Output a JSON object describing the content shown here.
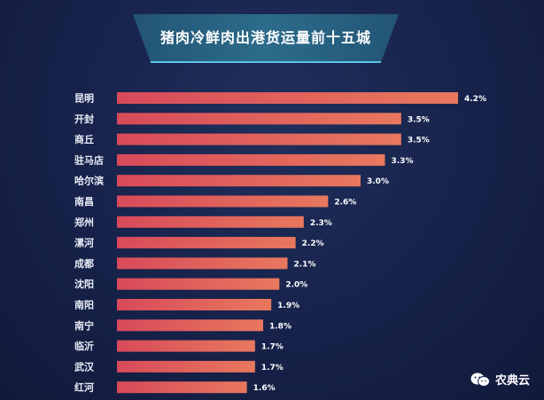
{
  "title": "猪肉冷鲜肉出港货运量前十五城",
  "watermark": {
    "text": "农典云",
    "icon": "wechat-icon"
  },
  "colors": {
    "bar_start": "#d84a5a",
    "bar_end": "#e8785e",
    "background": "#17224a",
    "title_panel": "#2d6f8c"
  },
  "chart_data": {
    "type": "bar",
    "orientation": "horizontal",
    "categories": [
      "昆明",
      "开封",
      "商丘",
      "驻马店",
      "哈尔滨",
      "南昌",
      "郑州",
      "漯河",
      "成都",
      "沈阳",
      "南阳",
      "南宁",
      "临沂",
      "武汉",
      "红河"
    ],
    "values": [
      4.2,
      3.5,
      3.5,
      3.3,
      3.0,
      2.6,
      2.3,
      2.2,
      2.1,
      2.0,
      1.9,
      1.8,
      1.7,
      1.7,
      1.6
    ],
    "value_labels": [
      "4.2%",
      "3.5%",
      "3.5%",
      "3.3%",
      "3.0%",
      "2.6%",
      "2.3%",
      "2.2%",
      "2.1%",
      "2.0%",
      "1.9%",
      "1.8%",
      "1.7%",
      "1.7%",
      "1.6%"
    ],
    "unit": "%",
    "grid": false,
    "legend": "none"
  }
}
